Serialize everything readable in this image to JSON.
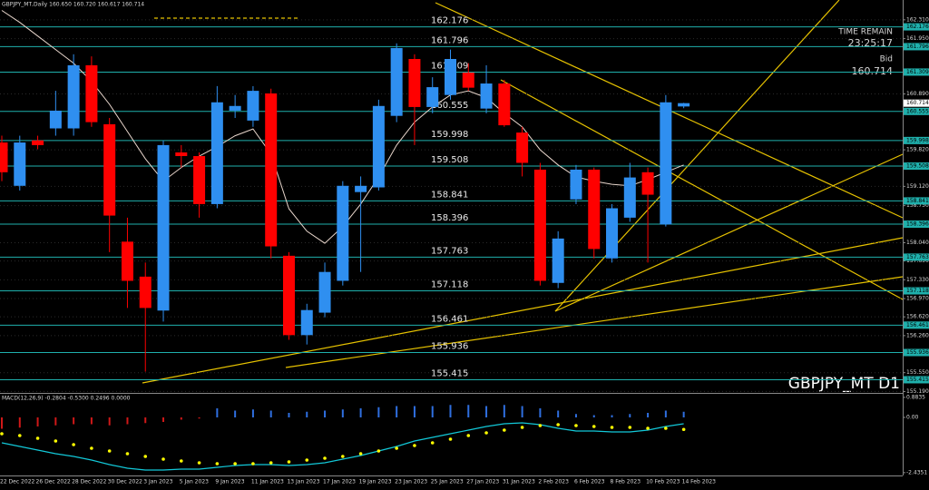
{
  "chart_data": [
    {
      "type": "candlestick",
      "title": "GBPJPY_MT,Daily  160.650 160.720 160.617 160.714",
      "watermark": "GBPJPY_MT D1",
      "timer_label": "TIME REMAIN",
      "timer": "23:25:17",
      "bid_label": "Bid",
      "bid": 160.714,
      "categories": [
        "22 Dec 2022",
        null,
        "26 Dec 2022",
        null,
        "28 Dec 2022",
        null,
        "30 Dec 2022",
        null,
        "3 Jan 2023",
        null,
        "5 Jan 2023",
        null,
        "9 Jan 2023",
        null,
        "11 Jan 2023",
        null,
        "13 Jan 2023",
        null,
        "17 Jan 2023",
        null,
        "19 Jan 2023",
        null,
        "23 Jan 2023",
        null,
        "25 Jan 2023",
        null,
        "27 Jan 2023",
        null,
        "31 Jan 2023",
        null,
        "2 Feb 2023",
        null,
        "6 Feb 2023",
        null,
        "8 Feb 2023",
        null,
        "10 Feb 2023",
        null,
        "14 Feb 2023"
      ],
      "open": [
        159.96,
        159.13,
        160.0,
        160.23,
        160.23,
        161.44,
        160.31,
        158.06,
        157.39,
        156.74,
        159.77,
        159.7,
        158.78,
        160.57,
        160.38,
        160.9,
        157.79,
        156.27,
        156.7,
        157.31,
        159.01,
        159.1,
        160.47,
        161.56,
        160.64,
        160.87,
        161.3,
        160.61,
        161.09,
        160.15,
        159.44,
        157.27,
        158.87,
        159.44,
        157.74,
        158.52,
        159.39,
        158.39,
        160.65
      ],
      "high": [
        160.09,
        160.09,
        160.09,
        160.95,
        161.65,
        161.61,
        160.43,
        158.52,
        157.66,
        160.0,
        159.91,
        159.77,
        161.04,
        160.87,
        161.04,
        160.99,
        157.86,
        156.87,
        157.66,
        159.22,
        159.31,
        160.78,
        161.86,
        161.65,
        161.21,
        161.74,
        161.48,
        161.44,
        161.16,
        160.26,
        159.57,
        158.26,
        159.53,
        159.48,
        158.78,
        159.57,
        159.48,
        160.87,
        160.72
      ],
      "low": [
        159.22,
        159.04,
        159.83,
        160.09,
        160.09,
        160.26,
        157.86,
        156.79,
        155.57,
        156.53,
        159.48,
        158.52,
        158.7,
        160.43,
        160.26,
        157.74,
        156.18,
        156.09,
        156.61,
        157.22,
        157.48,
        159.04,
        160.35,
        159.91,
        160.52,
        160.78,
        160.95,
        160.52,
        160.26,
        159.31,
        157.22,
        157.17,
        158.78,
        157.74,
        157.66,
        158.44,
        157.66,
        158.35,
        160.617
      ],
      "close": [
        159.39,
        159.96,
        159.91,
        160.57,
        161.44,
        160.35,
        158.56,
        157.31,
        156.79,
        159.91,
        159.7,
        158.78,
        160.73,
        160.66,
        160.95,
        157.97,
        156.27,
        156.75,
        157.48,
        159.13,
        159.13,
        160.66,
        161.77,
        160.64,
        161.02,
        161.56,
        161.01,
        161.09,
        160.29,
        159.57,
        157.31,
        158.12,
        159.44,
        157.92,
        158.7,
        159.29,
        158.96,
        160.73,
        160.714
      ],
      "up_color": "#2f8ff0",
      "down_color": "#ff0000",
      "ma": {
        "color": "#e8d6cc",
        "values": [
          162.49,
          162.26,
          162.0,
          161.74,
          161.48,
          161.13,
          160.69,
          160.17,
          159.65,
          159.22,
          159.48,
          159.7,
          159.88,
          160.09,
          160.22,
          159.74,
          158.69,
          158.26,
          158.03,
          158.35,
          158.78,
          159.3,
          159.91,
          160.35,
          160.64,
          160.87,
          160.95,
          160.82,
          160.52,
          160.26,
          159.82,
          159.53,
          159.3,
          159.22,
          159.16,
          159.13,
          159.25,
          159.39,
          159.53
        ]
      },
      "levels": {
        "color": "#1fb0ac",
        "values": [
          162.176,
          161.796,
          161.309,
          160.555,
          159.998,
          159.508,
          158.841,
          158.396,
          157.763,
          157.118,
          156.461,
          155.936,
          155.415
        ]
      },
      "ylim": [
        155.18,
        162.69
      ],
      "yticks": [
        {
          "value": 162.31,
          "label": "162.310"
        },
        {
          "value": 161.95,
          "label": "161.950"
        },
        {
          "value": 160.89,
          "label": "160.890"
        },
        {
          "value": 159.82,
          "label": "159.820"
        },
        {
          "value": 159.12,
          "label": "159.120"
        },
        {
          "value": 158.75,
          "label": "158.750"
        },
        {
          "value": 158.04,
          "label": "158.040"
        },
        {
          "value": 157.69,
          "label": "157.690"
        },
        {
          "value": 157.33,
          "label": "157.330"
        },
        {
          "value": 156.97,
          "label": "156.970"
        },
        {
          "value": 156.62,
          "label": "156.620"
        },
        {
          "value": 156.26,
          "label": "156.260"
        },
        {
          "value": 155.55,
          "label": "155.550"
        },
        {
          "value": 155.19,
          "label": "155.190"
        }
      ],
      "grid": true
    },
    {
      "type": "macd",
      "title": "MACD(12,26,9) -0.2804 -0.5300 0.2496 0.0000",
      "histogram": [
        -0.5,
        -0.45,
        -0.4,
        -0.35,
        -0.3,
        -0.3,
        -0.35,
        -0.3,
        -0.25,
        -0.2,
        -0.1,
        -0.05,
        0.4,
        0.3,
        0.35,
        0.3,
        0.2,
        0.25,
        0.3,
        0.35,
        0.4,
        0.45,
        0.5,
        0.5,
        0.5,
        0.55,
        0.55,
        0.5,
        0.55,
        0.5,
        0.4,
        0.3,
        0.15,
        0.1,
        0.1,
        0.15,
        0.2,
        0.3,
        0.2496
      ],
      "up_color": "#2f6fe0",
      "down_color": "#d01818",
      "main": {
        "color": "#12c8d8",
        "values": [
          -1.12,
          -1.28,
          -1.44,
          -1.6,
          -1.72,
          -1.88,
          -2.08,
          -2.24,
          -2.32,
          -2.32,
          -2.28,
          -2.28,
          -2.2,
          -2.12,
          -2.08,
          -2.08,
          -2.12,
          -2.08,
          -2.0,
          -1.84,
          -1.68,
          -1.48,
          -1.28,
          -1.04,
          -0.88,
          -0.72,
          -0.56,
          -0.4,
          -0.28,
          -0.24,
          -0.32,
          -0.48,
          -0.6,
          -0.6,
          -0.64,
          -0.64,
          -0.56,
          -0.4,
          -0.2804
        ]
      },
      "signal": {
        "color": "#ffff00",
        "values": [
          -0.72,
          -0.8,
          -0.92,
          -1.04,
          -1.2,
          -1.36,
          -1.48,
          -1.6,
          -1.72,
          -1.84,
          -1.92,
          -2.0,
          -2.04,
          -2.04,
          -2.04,
          -2.0,
          -1.96,
          -1.88,
          -1.8,
          -1.72,
          -1.6,
          -1.48,
          -1.36,
          -1.24,
          -1.12,
          -0.96,
          -0.8,
          -0.68,
          -0.56,
          -0.44,
          -0.36,
          -0.32,
          -0.36,
          -0.4,
          -0.44,
          -0.44,
          -0.48,
          -0.48,
          -0.53
        ]
      },
      "ylim": [
        -2.56,
        1.04
      ],
      "yticks": [
        0.8835,
        {
          "value": 0,
          "label": "0.00"
        },
        -2.4351
      ]
    }
  ]
}
